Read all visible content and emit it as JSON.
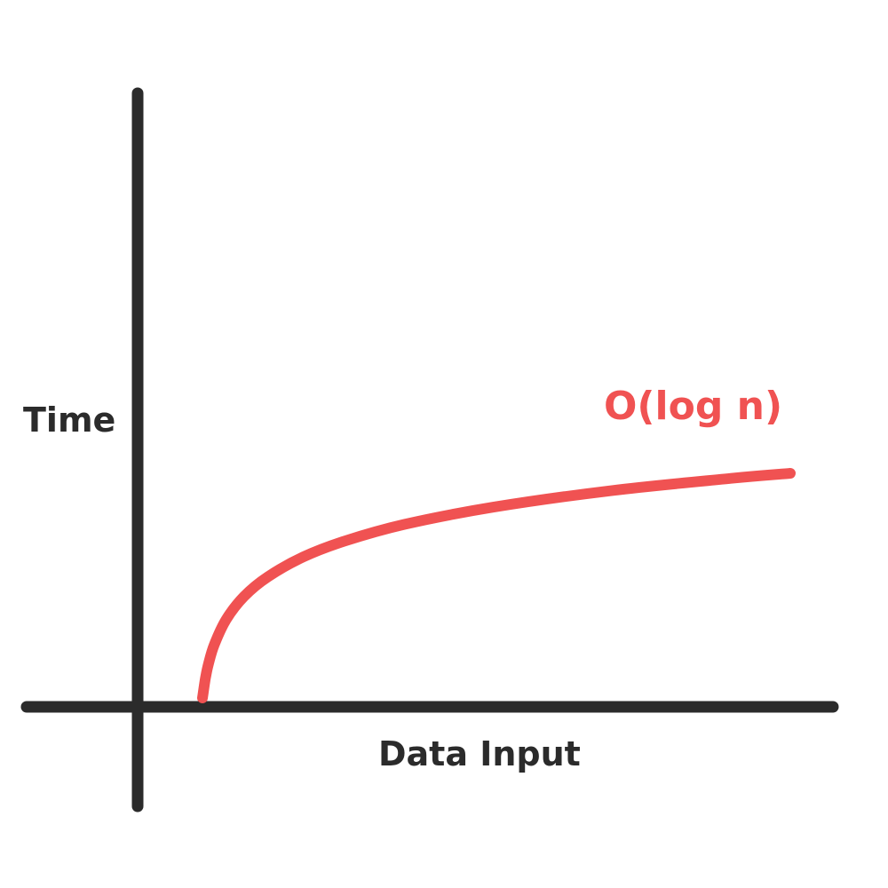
{
  "chart_data": {
    "type": "line",
    "title": "",
    "xlabel": "Data Input",
    "ylabel": "Time",
    "grid": false,
    "series": [
      {
        "name": "O(log n)",
        "color": "#f05252",
        "x": [
          1,
          1.5,
          2,
          3,
          5,
          8,
          12,
          18,
          25,
          35,
          50,
          70,
          90,
          100
        ],
        "y": [
          0,
          0.58,
          1,
          1.58,
          2.32,
          3,
          3.58,
          4.17,
          4.64,
          5.13,
          5.64,
          6.13,
          6.49,
          6.64
        ]
      }
    ],
    "axis_color": "#2b2b2b"
  }
}
